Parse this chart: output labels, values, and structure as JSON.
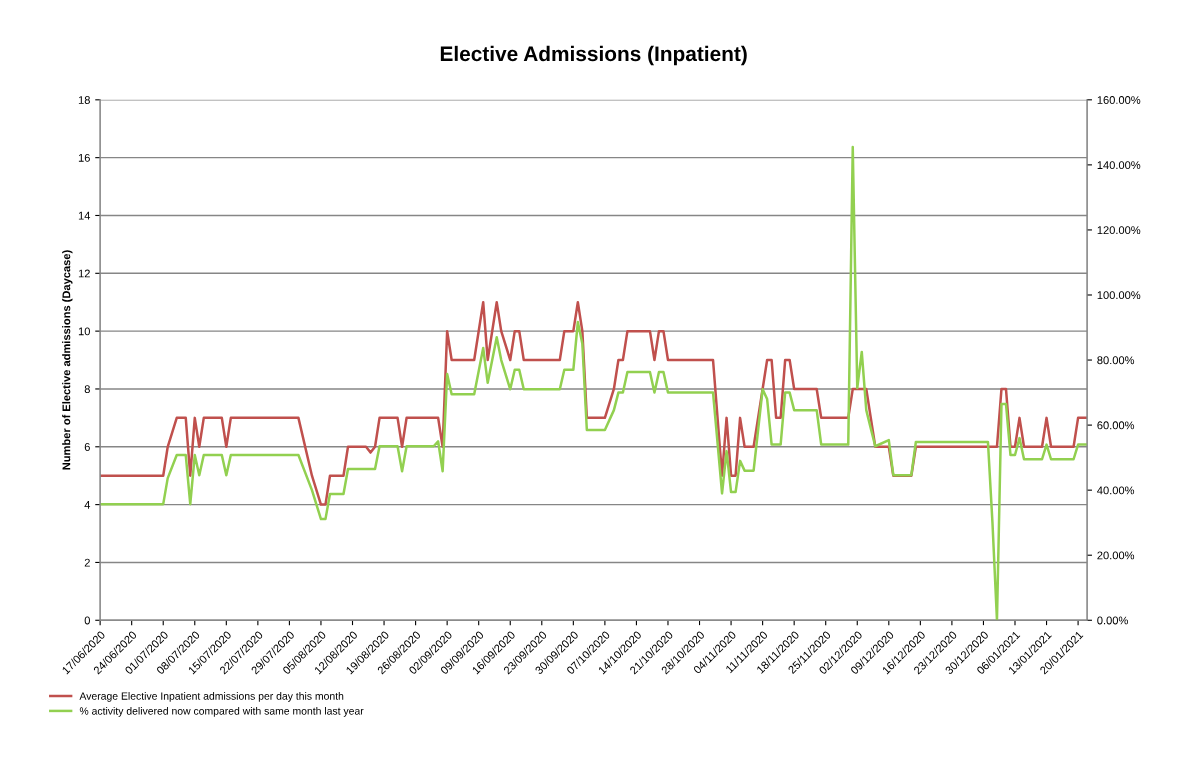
{
  "chart_data": {
    "type": "line",
    "title": "Elective Admissions (Inpatient)",
    "ylabel": "Number of Elective admissions (Daycase)",
    "x": [
      "2020-06-17",
      "2020-07-01",
      "2020-07-02",
      "2020-07-04",
      "2020-07-06",
      "2020-07-07",
      "2020-07-08",
      "2020-07-09",
      "2020-07-10",
      "2020-07-14",
      "2020-07-15",
      "2020-07-16",
      "2020-07-31",
      "2020-08-03",
      "2020-08-05",
      "2020-08-06",
      "2020-08-07",
      "2020-08-10",
      "2020-08-11",
      "2020-08-15",
      "2020-08-16",
      "2020-08-17",
      "2020-08-18",
      "2020-08-22",
      "2020-08-23",
      "2020-08-24",
      "2020-08-30",
      "2020-08-31",
      "2020-09-01",
      "2020-09-02",
      "2020-09-03",
      "2020-09-08",
      "2020-09-10",
      "2020-09-11",
      "2020-09-13",
      "2020-09-14",
      "2020-09-16",
      "2020-09-17",
      "2020-09-18",
      "2020-09-19",
      "2020-09-27",
      "2020-09-28",
      "2020-09-30",
      "2020-10-01",
      "2020-10-02",
      "2020-10-03",
      "2020-10-07",
      "2020-10-09",
      "2020-10-10",
      "2020-10-11",
      "2020-10-12",
      "2020-10-17",
      "2020-10-18",
      "2020-10-19",
      "2020-10-20",
      "2020-10-21",
      "2020-10-31",
      "2020-11-02",
      "2020-11-03",
      "2020-11-04",
      "2020-11-05",
      "2020-11-06",
      "2020-11-07",
      "2020-11-09",
      "2020-11-11",
      "2020-11-12",
      "2020-11-13",
      "2020-11-14",
      "2020-11-15",
      "2020-11-16",
      "2020-11-17",
      "2020-11-18",
      "2020-11-23",
      "2020-11-24",
      "2020-11-30",
      "2020-12-01",
      "2020-12-02",
      "2020-12-03",
      "2020-12-04",
      "2020-12-05",
      "2020-12-06",
      "2020-12-09",
      "2020-12-10",
      "2020-12-14",
      "2020-12-15",
      "2020-12-31",
      "2021-01-01",
      "2021-01-02",
      "2021-01-03",
      "2021-01-04",
      "2021-01-05",
      "2021-01-06",
      "2021-01-07",
      "2021-01-08",
      "2021-01-12",
      "2021-01-13",
      "2021-01-14",
      "2021-01-19",
      "2021-01-20",
      "2021-01-22"
    ],
    "series": [
      {
        "name": "Average Elective Inpatient admissions per day this month",
        "color": "#c0504d",
        "values": [
          5,
          5,
          6,
          7,
          7,
          5,
          7,
          6,
          7,
          7,
          6,
          7,
          7,
          5,
          4,
          4,
          5,
          5,
          6,
          6,
          5.8,
          6,
          7,
          7,
          6,
          7,
          7,
          7,
          6,
          10,
          9,
          9,
          11,
          9,
          11,
          10,
          9,
          10,
          10,
          9,
          9,
          10,
          10,
          11,
          10,
          7,
          7,
          8,
          9,
          9,
          10,
          10,
          9,
          10,
          10,
          9,
          9,
          5,
          7,
          5,
          5,
          7,
          6,
          6,
          8,
          9,
          9,
          7,
          7,
          9,
          9,
          8,
          8,
          7,
          7,
          8,
          8,
          8,
          8,
          7,
          6,
          6,
          5,
          5,
          6,
          6,
          6,
          6,
          8,
          8,
          6,
          6,
          7,
          6,
          6,
          7,
          6,
          6,
          7,
          7
        ]
      },
      {
        "name": "% activity delivered now compared with same month last year",
        "color": "#92d050",
        "axis": "y2",
        "values": [
          35.7,
          35.7,
          43.7,
          50.8,
          50.8,
          35.7,
          50.8,
          44.6,
          50.8,
          50.8,
          44.6,
          50.8,
          50.8,
          40,
          31.1,
          31.1,
          38.8,
          38.8,
          46.5,
          46.5,
          46.5,
          46.5,
          53.5,
          53.5,
          45.8,
          53.5,
          53.5,
          55,
          45.8,
          75.7,
          69.5,
          69.5,
          83.7,
          73,
          87,
          80,
          71,
          77,
          77,
          71,
          71,
          77,
          77,
          91.7,
          85,
          58.5,
          58.5,
          64.6,
          70,
          70,
          76.3,
          76.3,
          70,
          76.3,
          76.3,
          70,
          70,
          39,
          52,
          39.4,
          39.4,
          49,
          46,
          46,
          71,
          68,
          54,
          54,
          54,
          70,
          70,
          64.6,
          64.6,
          54,
          54,
          145.5,
          71.4,
          82.5,
          64.6,
          59,
          53.5,
          55.4,
          44.6,
          44.6,
          54.8,
          54.8,
          30,
          0,
          66.5,
          66.5,
          50.8,
          50.8,
          56,
          49.5,
          49.5,
          54,
          49.5,
          49.5,
          54,
          54
        ]
      }
    ],
    "xlim": [
      "2020-06-17",
      "2021-01-22"
    ],
    "xticks": [
      {
        "value": "2020-06-17",
        "label": "17/06/2020"
      },
      {
        "value": "2020-06-24",
        "label": "24/06/2020"
      },
      {
        "value": "2020-07-01",
        "label": "01/07/2020"
      },
      {
        "value": "2020-07-08",
        "label": "08/07/2020"
      },
      {
        "value": "2020-07-15",
        "label": "15/07/2020"
      },
      {
        "value": "2020-07-22",
        "label": "22/07/2020"
      },
      {
        "value": "2020-07-29",
        "label": "29/07/2020"
      },
      {
        "value": "2020-08-05",
        "label": "05/08/2020"
      },
      {
        "value": "2020-08-12",
        "label": "12/08/2020"
      },
      {
        "value": "2020-08-19",
        "label": "19/08/2020"
      },
      {
        "value": "2020-08-26",
        "label": "26/08/2020"
      },
      {
        "value": "2020-09-02",
        "label": "02/09/2020"
      },
      {
        "value": "2020-09-09",
        "label": "09/09/2020"
      },
      {
        "value": "2020-09-16",
        "label": "16/09/2020"
      },
      {
        "value": "2020-09-23",
        "label": "23/09/2020"
      },
      {
        "value": "2020-09-30",
        "label": "30/09/2020"
      },
      {
        "value": "2020-10-07",
        "label": "07/10/2020"
      },
      {
        "value": "2020-10-14",
        "label": "14/10/2020"
      },
      {
        "value": "2020-10-21",
        "label": "21/10/2020"
      },
      {
        "value": "2020-10-28",
        "label": "28/10/2020"
      },
      {
        "value": "2020-11-04",
        "label": "04/11/2020"
      },
      {
        "value": "2020-11-11",
        "label": "11/11/2020"
      },
      {
        "value": "2020-11-18",
        "label": "18/11/2020"
      },
      {
        "value": "2020-11-25",
        "label": "25/11/2020"
      },
      {
        "value": "2020-12-02",
        "label": "02/12/2020"
      },
      {
        "value": "2020-12-09",
        "label": "09/12/2020"
      },
      {
        "value": "2020-12-16",
        "label": "16/12/2020"
      },
      {
        "value": "2020-12-23",
        "label": "23/12/2020"
      },
      {
        "value": "2020-12-30",
        "label": "30/12/2020"
      },
      {
        "value": "2021-01-06",
        "label": "06/01/2021"
      },
      {
        "value": "2021-01-13",
        "label": "13/01/2021"
      },
      {
        "value": "2021-01-20",
        "label": "20/01/2021"
      }
    ],
    "ylim": [
      0,
      18
    ],
    "yticks": [
      0,
      2,
      4,
      6,
      8,
      10,
      12,
      14,
      16,
      18
    ],
    "y2lim": [
      0,
      160
    ],
    "y2ticks": [
      {
        "value": 0,
        "label": "0.00%"
      },
      {
        "value": 20,
        "label": "20.00%"
      },
      {
        "value": 40,
        "label": "40.00%"
      },
      {
        "value": 60,
        "label": "60.00%"
      },
      {
        "value": 80,
        "label": "80.00%"
      },
      {
        "value": 100,
        "label": "100.00%"
      },
      {
        "value": 120,
        "label": "120.00%"
      },
      {
        "value": 140,
        "label": "140.00%"
      },
      {
        "value": 160,
        "label": "160.00%"
      }
    ],
    "grid": "y",
    "legend": "bottom left",
    "marker": "none",
    "line_style": "solid"
  }
}
